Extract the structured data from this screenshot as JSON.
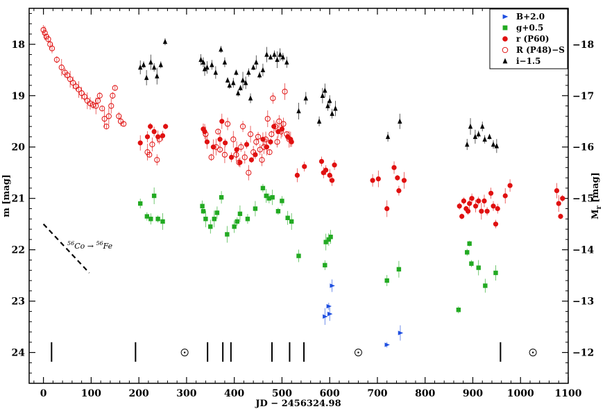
{
  "chart_data": {
    "type": "scatter",
    "xlabel": "JD − 2456324.98",
    "ylabel_left": "m [mag]",
    "ylabel_right": "M",
    "ylabel_right_sub": "r",
    "ylabel_right_unit": " [mag]",
    "xlim": [
      -30,
      1100
    ],
    "ylim": [
      24.6,
      17.3
    ],
    "x_ticks": [
      0,
      100,
      200,
      300,
      400,
      500,
      600,
      700,
      800,
      900,
      1000,
      1100
    ],
    "y_ticks_left": [
      18,
      19,
      20,
      21,
      22,
      23,
      24
    ],
    "y_ticks_right": [
      -18,
      -17,
      -16,
      -15,
      -14,
      -13,
      -12
    ],
    "right_axis_offset": 36.0,
    "legend_position": "top-right",
    "series": [
      {
        "name": "B+2.0",
        "marker": "triangle-right",
        "color": "#1f4fe0",
        "points": [
          [
            590,
            23.3
          ],
          [
            598,
            23.1
          ],
          [
            600,
            23.25
          ],
          [
            605,
            22.7
          ],
          [
            720,
            23.85
          ],
          [
            748,
            23.62
          ]
        ]
      },
      {
        "name": "g+0.5",
        "marker": "square",
        "color": "#22aa22",
        "points": [
          [
            203,
            21.1
          ],
          [
            217,
            21.35
          ],
          [
            225,
            21.4
          ],
          [
            232,
            20.95
          ],
          [
            240,
            21.4
          ],
          [
            250,
            21.45
          ],
          [
            333,
            21.15
          ],
          [
            335,
            21.25
          ],
          [
            340,
            21.4
          ],
          [
            350,
            21.55
          ],
          [
            358,
            21.4
          ],
          [
            364,
            21.28
          ],
          [
            373,
            20.98
          ],
          [
            385,
            21.7
          ],
          [
            400,
            21.55
          ],
          [
            406,
            21.45
          ],
          [
            412,
            21.3
          ],
          [
            428,
            21.4
          ],
          [
            444,
            21.2
          ],
          [
            460,
            20.8
          ],
          [
            467,
            20.95
          ],
          [
            473,
            21.0
          ],
          [
            480,
            20.98
          ],
          [
            492,
            21.25
          ],
          [
            500,
            21.05
          ],
          [
            512,
            21.38
          ],
          [
            520,
            21.45
          ],
          [
            535,
            22.12
          ],
          [
            590,
            22.3
          ],
          [
            592,
            21.85
          ],
          [
            598,
            21.8
          ],
          [
            602,
            21.75
          ],
          [
            720,
            22.6
          ],
          [
            745,
            22.38
          ],
          [
            870,
            23.17
          ],
          [
            888,
            22.05
          ],
          [
            893,
            21.88
          ],
          [
            897,
            22.27
          ],
          [
            912,
            22.35
          ],
          [
            926,
            22.7
          ],
          [
            948,
            22.45
          ]
        ]
      },
      {
        "name": "r (P60)",
        "marker": "circle-filled",
        "color": "#e01010",
        "points": [
          [
            203,
            19.92
          ],
          [
            218,
            19.8
          ],
          [
            224,
            19.6
          ],
          [
            232,
            19.7
          ],
          [
            240,
            19.8
          ],
          [
            250,
            19.78
          ],
          [
            256,
            19.6
          ],
          [
            335,
            19.65
          ],
          [
            338,
            19.7
          ],
          [
            343,
            19.9
          ],
          [
            356,
            20.0
          ],
          [
            370,
            19.85
          ],
          [
            374,
            19.5
          ],
          [
            381,
            19.92
          ],
          [
            394,
            20.2
          ],
          [
            405,
            20.05
          ],
          [
            412,
            20.3
          ],
          [
            426,
            19.95
          ],
          [
            436,
            20.25
          ],
          [
            444,
            20.15
          ],
          [
            460,
            19.85
          ],
          [
            468,
            20.0
          ],
          [
            476,
            19.9
          ],
          [
            483,
            19.6
          ],
          [
            492,
            19.7
          ],
          [
            500,
            19.65
          ],
          [
            512,
            19.8
          ],
          [
            518,
            19.85
          ],
          [
            520,
            19.9
          ],
          [
            532,
            20.55
          ],
          [
            547,
            20.38
          ],
          [
            583,
            20.28
          ],
          [
            587,
            20.5
          ],
          [
            592,
            20.45
          ],
          [
            600,
            20.55
          ],
          [
            605,
            20.65
          ],
          [
            610,
            20.35
          ],
          [
            690,
            20.65
          ],
          [
            702,
            20.62
          ],
          [
            720,
            21.2
          ],
          [
            735,
            20.4
          ],
          [
            742,
            20.6
          ],
          [
            745,
            20.85
          ],
          [
            756,
            20.65
          ],
          [
            872,
            21.15
          ],
          [
            877,
            21.35
          ],
          [
            881,
            21.05
          ],
          [
            886,
            21.2
          ],
          [
            890,
            21.25
          ],
          [
            893,
            21.1
          ],
          [
            898,
            21.0
          ],
          [
            906,
            21.15
          ],
          [
            912,
            21.05
          ],
          [
            918,
            21.25
          ],
          [
            924,
            21.05
          ],
          [
            930,
            21.25
          ],
          [
            938,
            20.9
          ],
          [
            943,
            21.15
          ],
          [
            948,
            21.5
          ],
          [
            952,
            21.2
          ],
          [
            968,
            20.95
          ],
          [
            978,
            20.75
          ],
          [
            1076,
            20.85
          ],
          [
            1080,
            21.1
          ],
          [
            1084,
            21.35
          ],
          [
            1088,
            21.0
          ]
        ]
      },
      {
        "name": "R (P48)−S",
        "marker": "circle-open",
        "color": "#e01010",
        "points": [
          [
            0,
            17.72
          ],
          [
            3,
            17.78
          ],
          [
            6,
            17.85
          ],
          [
            10,
            17.9
          ],
          [
            14,
            18.0
          ],
          [
            18,
            18.08
          ],
          [
            28,
            18.3
          ],
          [
            38,
            18.45
          ],
          [
            45,
            18.55
          ],
          [
            50,
            18.6
          ],
          [
            56,
            18.68
          ],
          [
            62,
            18.75
          ],
          [
            68,
            18.82
          ],
          [
            74,
            18.88
          ],
          [
            80,
            18.95
          ],
          [
            86,
            19.02
          ],
          [
            92,
            19.1
          ],
          [
            98,
            19.15
          ],
          [
            104,
            19.18
          ],
          [
            110,
            19.2
          ],
          [
            114,
            19.1
          ],
          [
            118,
            19.0
          ],
          [
            123,
            19.25
          ],
          [
            128,
            19.45
          ],
          [
            132,
            19.6
          ],
          [
            137,
            19.4
          ],
          [
            142,
            19.2
          ],
          [
            145,
            19.0
          ],
          [
            150,
            18.85
          ],
          [
            158,
            19.4
          ],
          [
            162,
            19.5
          ],
          [
            168,
            19.55
          ],
          [
            218,
            20.1
          ],
          [
            222,
            20.15
          ],
          [
            228,
            19.95
          ],
          [
            238,
            20.25
          ],
          [
            243,
            19.85
          ],
          [
            340,
            19.75
          ],
          [
            352,
            20.2
          ],
          [
            362,
            20.0
          ],
          [
            366,
            19.7
          ],
          [
            370,
            20.05
          ],
          [
            380,
            20.15
          ],
          [
            386,
            19.55
          ],
          [
            398,
            19.85
          ],
          [
            404,
            20.15
          ],
          [
            410,
            20.3
          ],
          [
            414,
            20.0
          ],
          [
            418,
            19.6
          ],
          [
            422,
            20.2
          ],
          [
            430,
            20.5
          ],
          [
            434,
            19.75
          ],
          [
            440,
            20.1
          ],
          [
            446,
            19.9
          ],
          [
            450,
            19.8
          ],
          [
            454,
            20.05
          ],
          [
            458,
            20.25
          ],
          [
            462,
            20.0
          ],
          [
            466,
            19.85
          ],
          [
            470,
            19.45
          ],
          [
            474,
            20.1
          ],
          [
            478,
            19.75
          ],
          [
            481,
            19.05
          ],
          [
            486,
            19.6
          ],
          [
            490,
            19.9
          ],
          [
            494,
            19.5
          ],
          [
            498,
            19.7
          ],
          [
            503,
            19.55
          ],
          [
            506,
            18.92
          ],
          [
            510,
            19.75
          ],
          [
            515,
            19.85
          ]
        ]
      },
      {
        "name": "i−1.5",
        "marker": "triangle-up",
        "color": "#000000",
        "points": [
          [
            203,
            18.45
          ],
          [
            210,
            18.4
          ],
          [
            216,
            18.65
          ],
          [
            225,
            18.35
          ],
          [
            232,
            18.45
          ],
          [
            238,
            18.62
          ],
          [
            246,
            18.4
          ],
          [
            255,
            17.95
          ],
          [
            330,
            18.3
          ],
          [
            335,
            18.35
          ],
          [
            338,
            18.48
          ],
          [
            343,
            18.45
          ],
          [
            353,
            18.4
          ],
          [
            361,
            18.55
          ],
          [
            372,
            18.1
          ],
          [
            380,
            18.35
          ],
          [
            386,
            18.7
          ],
          [
            390,
            18.8
          ],
          [
            398,
            18.75
          ],
          [
            404,
            18.55
          ],
          [
            408,
            18.95
          ],
          [
            413,
            18.85
          ],
          [
            418,
            18.7
          ],
          [
            424,
            18.75
          ],
          [
            430,
            18.55
          ],
          [
            434,
            19.05
          ],
          [
            440,
            18.45
          ],
          [
            446,
            18.35
          ],
          [
            453,
            18.6
          ],
          [
            460,
            18.5
          ],
          [
            468,
            18.2
          ],
          [
            476,
            18.25
          ],
          [
            484,
            18.2
          ],
          [
            490,
            18.3
          ],
          [
            496,
            18.2
          ],
          [
            502,
            18.25
          ],
          [
            510,
            18.35
          ],
          [
            535,
            19.3
          ],
          [
            550,
            19.05
          ],
          [
            578,
            19.5
          ],
          [
            585,
            19.0
          ],
          [
            590,
            18.9
          ],
          [
            596,
            19.2
          ],
          [
            600,
            19.1
          ],
          [
            605,
            19.35
          ],
          [
            612,
            19.25
          ],
          [
            722,
            19.8
          ],
          [
            747,
            19.5
          ],
          [
            888,
            19.95
          ],
          [
            895,
            19.6
          ],
          [
            905,
            19.8
          ],
          [
            912,
            19.75
          ],
          [
            920,
            19.6
          ],
          [
            925,
            19.85
          ],
          [
            935,
            19.8
          ],
          [
            943,
            19.95
          ],
          [
            950,
            19.98
          ]
        ]
      }
    ],
    "solar_conjunction_x": [
      296,
      660,
      1026
    ],
    "vertical_markers_x": [
      17,
      193,
      344,
      376,
      393,
      479,
      516,
      546,
      958
    ],
    "decay_line": {
      "label_base": "Co → ",
      "label_from_mass": "56",
      "label_from_sym": "Co",
      "label_to_mass": "56",
      "label_to_sym": "Fe",
      "x": [
        0,
        96
      ],
      "y": [
        21.5,
        22.45
      ]
    }
  }
}
